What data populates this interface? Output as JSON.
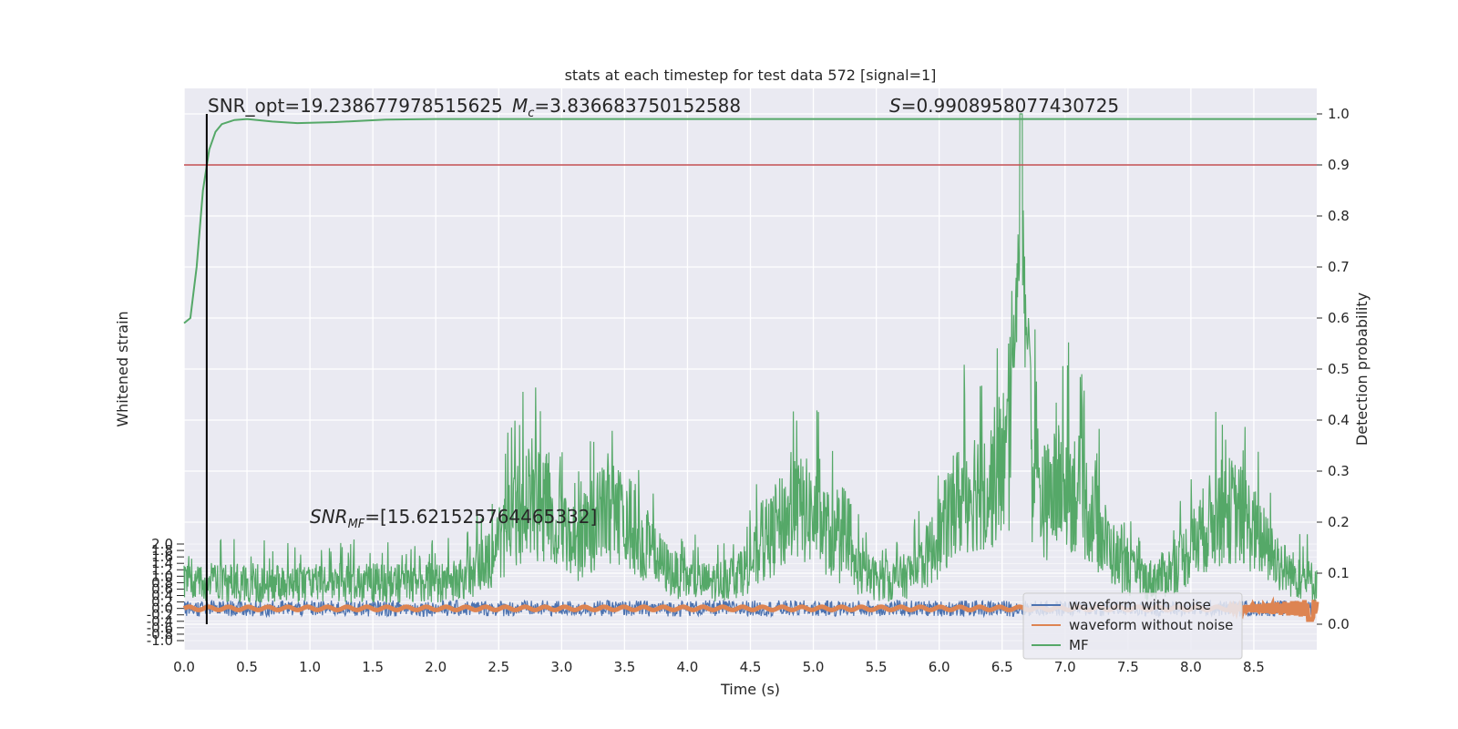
{
  "chart_data": {
    "type": "line",
    "title": "stats at each timestep for test data 572 [signal=1]",
    "xlabel": "Time (s)",
    "ylabel_left": "Whitened strain",
    "ylabel_right": "Detection probability",
    "xlim": [
      0.0,
      9.0
    ],
    "ylim_left": [
      -1.0,
      2.0
    ],
    "ylim_right": [
      -0.05,
      1.05
    ],
    "x_ticks": [
      "0.0",
      "0.5",
      "1.0",
      "1.5",
      "2.0",
      "2.5",
      "3.0",
      "3.5",
      "4.0",
      "4.5",
      "5.0",
      "5.5",
      "6.0",
      "6.5",
      "7.0",
      "7.5",
      "8.0",
      "8.5"
    ],
    "left_ticks": [
      "-1.0",
      "-0.8",
      "-0.6",
      "-0.4",
      "-0.2",
      "0.0",
      "0.2",
      "0.4",
      "0.6",
      "0.8",
      "1.0",
      "1.2",
      "1.4",
      "1.6",
      "1.8",
      "2.0"
    ],
    "right_ticks": [
      "0.0",
      "0.1",
      "0.2",
      "0.3",
      "0.4",
      "0.5",
      "0.6",
      "0.7",
      "0.8",
      "0.9",
      "1.0"
    ],
    "threshold": 0.9,
    "vline_x": 0.18,
    "grid": true,
    "legend_position": "lower-right",
    "series": [
      {
        "name": "waveform with noise",
        "color": "#4c72b0",
        "axis": "left",
        "amplitude": 0.25,
        "center": 0.0
      },
      {
        "name": "waveform without noise",
        "color": "#dd8452",
        "axis": "left",
        "amplitude": 0.05,
        "center": 0.0,
        "chirp_end": 8.95
      },
      {
        "name": "MF",
        "color": "#55a868",
        "axis": "right"
      }
    ],
    "detection_probability": {
      "x": [
        0.0,
        0.05,
        0.1,
        0.15,
        0.2,
        0.25,
        0.3,
        0.4,
        0.5,
        0.7,
        0.9,
        1.2,
        1.6,
        2.0,
        3.0,
        5.0,
        7.0,
        9.0
      ],
      "y": [
        0.59,
        0.6,
        0.7,
        0.85,
        0.93,
        0.965,
        0.98,
        0.988,
        0.99,
        0.985,
        0.982,
        0.984,
        0.989,
        0.99,
        0.99,
        0.99,
        0.99,
        0.99
      ]
    },
    "mf_envelope": {
      "peak_x": 6.65,
      "peak_y": 1.0,
      "base_y": 0.12,
      "bumps": [
        {
          "x": 2.8,
          "y": 0.35
        },
        {
          "x": 3.4,
          "y": 0.32
        },
        {
          "x": 4.9,
          "y": 0.33
        },
        {
          "x": 6.3,
          "y": 0.4
        },
        {
          "x": 6.6,
          "y": 0.5
        },
        {
          "x": 7.0,
          "y": 0.4
        },
        {
          "x": 8.3,
          "y": 0.33
        }
      ]
    },
    "annotations": {
      "snr_opt": "SNR_opt=19.238677978515625",
      "mc": "=3.836683750152588",
      "s": "=0.9908958077430725",
      "snr_mf": "=[15.621525764465332]"
    }
  },
  "legend": {
    "items": [
      "waveform with noise",
      "waveform without noise",
      "MF"
    ]
  }
}
